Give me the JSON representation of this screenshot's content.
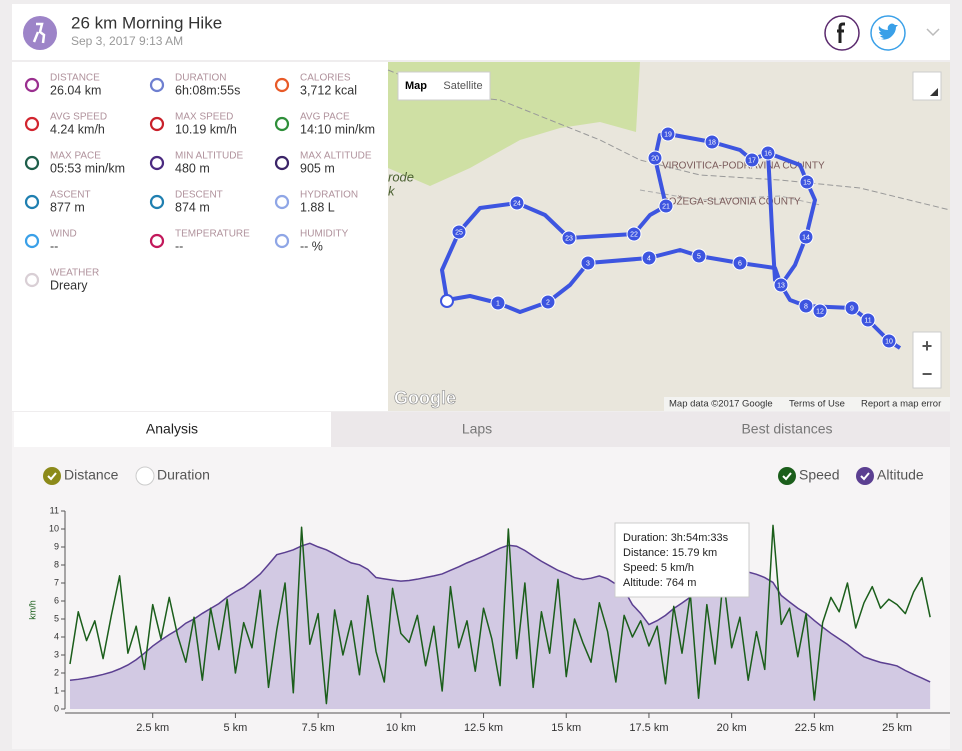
{
  "header": {
    "title": "26 km Morning Hike",
    "date": "Sep 3, 2017 9:13 AM"
  },
  "stats": [
    {
      "label": "DISTANCE",
      "value": "26.04 km"
    },
    {
      "label": "DURATION",
      "value": "6h:08m:55s"
    },
    {
      "label": "CALORIES",
      "value": "3,712 kcal"
    },
    {
      "label": "AVG SPEED",
      "value": "4.24 km/h"
    },
    {
      "label": "MAX SPEED",
      "value": "10.19 km/h"
    },
    {
      "label": "AVG PACE",
      "value": "14:10 min/km"
    },
    {
      "label": "MAX PACE",
      "value": "05:53 min/km"
    },
    {
      "label": "MIN ALTITUDE",
      "value": "480 m"
    },
    {
      "label": "MAX ALTITUDE",
      "value": "905 m"
    },
    {
      "label": "ASCENT",
      "value": "877 m"
    },
    {
      "label": "DESCENT",
      "value": "874 m"
    },
    {
      "label": "HYDRATION",
      "value": "1.88 L"
    },
    {
      "label": "WIND",
      "value": "--"
    },
    {
      "label": "TEMPERATURE",
      "value": "--"
    },
    {
      "label": "HUMIDITY",
      "value": "-- %"
    },
    {
      "label": "WEATHER",
      "value": "Dreary"
    }
  ],
  "map": {
    "buttons": [
      "Map",
      "Satellite"
    ],
    "labels": [
      "VIROVITICA-PODRAVINA COUNTY",
      "POŽEGA-SLAVONIA COUNTY",
      "rode",
      "k"
    ],
    "markers": [
      "1",
      "2",
      "3",
      "4",
      "5",
      "6",
      "8",
      "9",
      "10",
      "11",
      "12",
      "13",
      "14",
      "15",
      "16",
      "17",
      "18",
      "19",
      "20",
      "21",
      "22",
      "23",
      "24",
      "25"
    ],
    "zoom": [
      "+",
      "−"
    ],
    "logo": "Google",
    "footer": [
      "Map data ©2017 Google",
      "Terms of Use",
      "Report a map error"
    ]
  },
  "tabs": [
    "Analysis",
    "Laps",
    "Best distances"
  ],
  "toggles": [
    "Distance",
    "Duration"
  ],
  "chart_data": {
    "type": "line",
    "y_label": "km/h",
    "x": [
      0,
      0.25,
      0.5,
      0.75,
      1,
      1.25,
      1.5,
      1.75,
      2,
      2.25,
      2.5,
      2.75,
      3,
      3.25,
      3.5,
      3.75,
      4,
      4.25,
      4.5,
      4.75,
      5,
      5.25,
      5.5,
      5.75,
      6,
      6.25,
      6.5,
      6.75,
      7,
      7.25,
      7.5,
      7.75,
      8,
      8.25,
      8.5,
      8.75,
      9,
      9.25,
      9.5,
      9.75,
      10,
      10.25,
      10.5,
      10.75,
      11,
      11.25,
      11.5,
      11.75,
      12,
      12.25,
      12.5,
      12.75,
      13,
      13.25,
      13.5,
      13.75,
      14,
      14.25,
      14.5,
      14.75,
      15,
      15.25,
      15.5,
      15.75,
      16,
      16.25,
      16.5,
      16.75,
      17,
      17.25,
      17.5,
      17.75,
      18,
      18.25,
      18.5,
      18.75,
      19,
      19.25,
      19.5,
      19.75,
      20,
      20.25,
      20.5,
      20.75,
      21,
      21.25,
      21.5,
      21.75,
      22,
      22.25,
      22.5,
      22.75,
      23,
      23.25,
      23.5,
      23.75,
      24,
      24.25,
      24.5,
      24.75,
      25,
      25.25,
      25.5,
      25.75,
      26
    ],
    "series": [
      {
        "name": "Speed",
        "color": "#1b5e1b",
        "values": [
          2.5,
          5.4,
          3.8,
          4.9,
          2.8,
          5.2,
          7.4,
          3.1,
          4.6,
          2.2,
          5.8,
          3.9,
          6.2,
          4.1,
          2.6,
          5.1,
          1.6,
          5.6,
          3.3,
          6.1,
          2.0,
          4.8,
          3.4,
          6.6,
          1.2,
          4.4,
          7.0,
          0.9,
          10.1,
          3.6,
          5.3,
          0.3,
          5.5,
          3.0,
          4.9,
          1.9,
          6.3,
          3.2,
          1.5,
          6.7,
          4.2,
          3.7,
          5.2,
          2.4,
          4.6,
          1.0,
          6.8,
          3.4,
          4.9,
          2.1,
          5.6,
          3.9,
          1.3,
          10.0,
          2.8,
          7.0,
          1.2,
          5.4,
          3.1,
          7.2,
          1.8,
          5.0,
          3.7,
          2.6,
          5.9,
          4.3,
          1.5,
          5.2,
          4.0,
          4.9,
          3.5,
          4.6,
          1.4,
          5.7,
          3.1,
          6.4,
          0.6,
          5.8,
          2.5,
          7.3,
          3.4,
          5.1,
          1.6,
          4.3,
          2.2,
          10.2,
          4.7,
          5.6,
          2.9,
          5.3,
          0.5,
          4.8,
          6.2,
          5.4,
          7.0,
          4.5,
          5.9,
          6.8,
          5.6,
          6.1,
          5.8,
          5.3,
          6.5,
          7.3,
          5.1
        ]
      },
      {
        "name": "Altitude",
        "color": "#5b3f91",
        "fill": "#d2c9e3",
        "axis": "y2",
        "values": [
          485,
          488,
          492,
          497,
          503,
          510,
          520,
          532,
          548,
          568,
          590,
          608,
          625,
          640,
          660,
          673,
          690,
          705,
          720,
          740,
          756,
          770,
          790,
          811,
          840,
          870,
          877,
          885,
          897,
          905,
          894,
          885,
          872,
          858,
          845,
          839,
          825,
          800,
          796,
          792,
          789,
          791,
          795,
          800,
          805,
          811,
          822,
          833,
          845,
          855,
          866,
          878,
          890,
          899,
          896,
          883,
          866,
          850,
          836,
          822,
          812,
          800,
          794,
          798,
          805,
          796,
          780,
          762,
          717,
          690,
          656,
          668,
          684,
          705,
          722,
          740,
          761,
          778,
          800,
          805,
          810,
          814,
          817,
          810,
          800,
          785,
          745,
          725,
          706,
          690,
          668,
          648,
          629,
          612,
          595,
          575,
          557,
          548,
          540,
          535,
          529,
          515,
          503,
          492,
          480
        ]
      }
    ],
    "xlim": [
      0,
      26.6
    ],
    "xticks": [
      {
        "value": 2.5,
        "label": "2.5 km"
      },
      {
        "value": 5,
        "label": "5 km"
      },
      {
        "value": 7.5,
        "label": "7.5 km"
      },
      {
        "value": 10,
        "label": "10 km"
      },
      {
        "value": 12.5,
        "label": "12.5 km"
      },
      {
        "value": 15,
        "label": "15 km"
      },
      {
        "value": 17.5,
        "label": "17.5 km"
      },
      {
        "value": 20,
        "label": "20 km"
      },
      {
        "value": 22.5,
        "label": "22.5 km"
      },
      {
        "value": 25,
        "label": "25 km"
      }
    ],
    "ylim": [
      0,
      11
    ],
    "yticks": [
      0,
      1,
      2,
      3,
      4,
      5,
      6,
      7,
      8,
      9,
      10,
      11
    ],
    "y2lim": [
      397,
      1004
    ],
    "tooltip": [
      "Duration: 3h:54m:33s",
      "Distance: 15.79 km",
      "Speed: 5 km/h",
      "Altitude: 764 m"
    ]
  }
}
